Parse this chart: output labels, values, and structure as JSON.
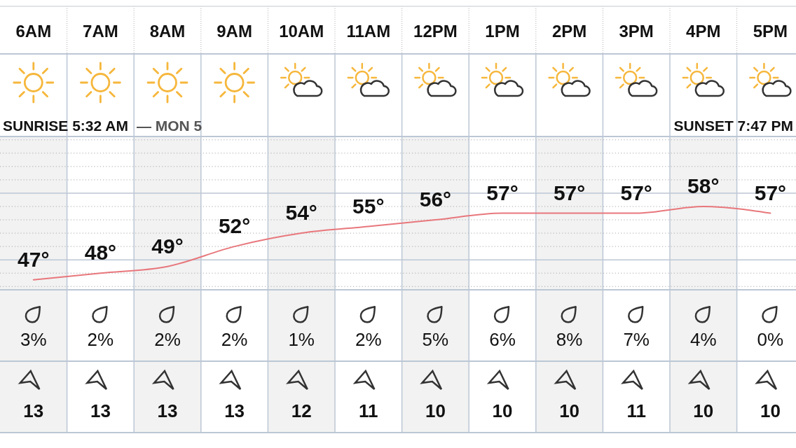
{
  "chart_data": [
    {
      "type": "line",
      "categories": [
        "6AM",
        "7AM",
        "8AM",
        "9AM",
        "10AM",
        "11AM",
        "12PM",
        "1PM",
        "2PM",
        "3PM",
        "4PM",
        "5PM"
      ],
      "values": [
        47,
        48,
        49,
        52,
        54,
        55,
        56,
        57,
        57,
        57,
        58,
        57
      ],
      "value_labels": [
        "47°",
        "48°",
        "49°",
        "52°",
        "54°",
        "55°",
        "56°",
        "57°",
        "57°",
        "57°",
        "58°",
        "57°"
      ],
      "color": "#e8777c",
      "ylim": [
        45.5,
        68.5
      ],
      "yticks": [
        {
          "value": 46,
          "label": null
        },
        {
          "value": 48,
          "label": null
        },
        {
          "value": 52,
          "label": null
        },
        {
          "value": 54,
          "label": null
        },
        {
          "value": 56,
          "label": null
        },
        {
          "value": 58,
          "label": null
        },
        {
          "value": 62,
          "label": null
        },
        {
          "value": 64,
          "label": null
        },
        {
          "value": 66,
          "label": null
        },
        {
          "value": 68,
          "label": null
        }
      ],
      "grid": "y",
      "ref_lines": [
        {
          "axis": "y",
          "value": 50,
          "color": "#bcc7d5"
        },
        {
          "axis": "y",
          "value": 60,
          "color": "#bcc7d5"
        }
      ],
      "tick_labels": "x",
      "annotations": [
        "SUNRISE 5:32 AM",
        "— MON 5",
        "SUNSET 7:47 PM"
      ]
    },
    {
      "type": "other",
      "values": [
        3,
        2,
        2,
        2,
        1,
        2,
        5,
        6,
        8,
        7,
        4,
        0
      ],
      "value_labels": [
        "3%",
        "2%",
        "2%",
        "2%",
        "1%",
        "2%",
        "5%",
        "6%",
        "8%",
        "7%",
        "4%",
        "0%"
      ]
    },
    {
      "type": "other",
      "values": [
        13,
        13,
        13,
        13,
        12,
        11,
        10,
        10,
        10,
        11,
        10,
        10
      ],
      "data_labels": true
    }
  ]
}
